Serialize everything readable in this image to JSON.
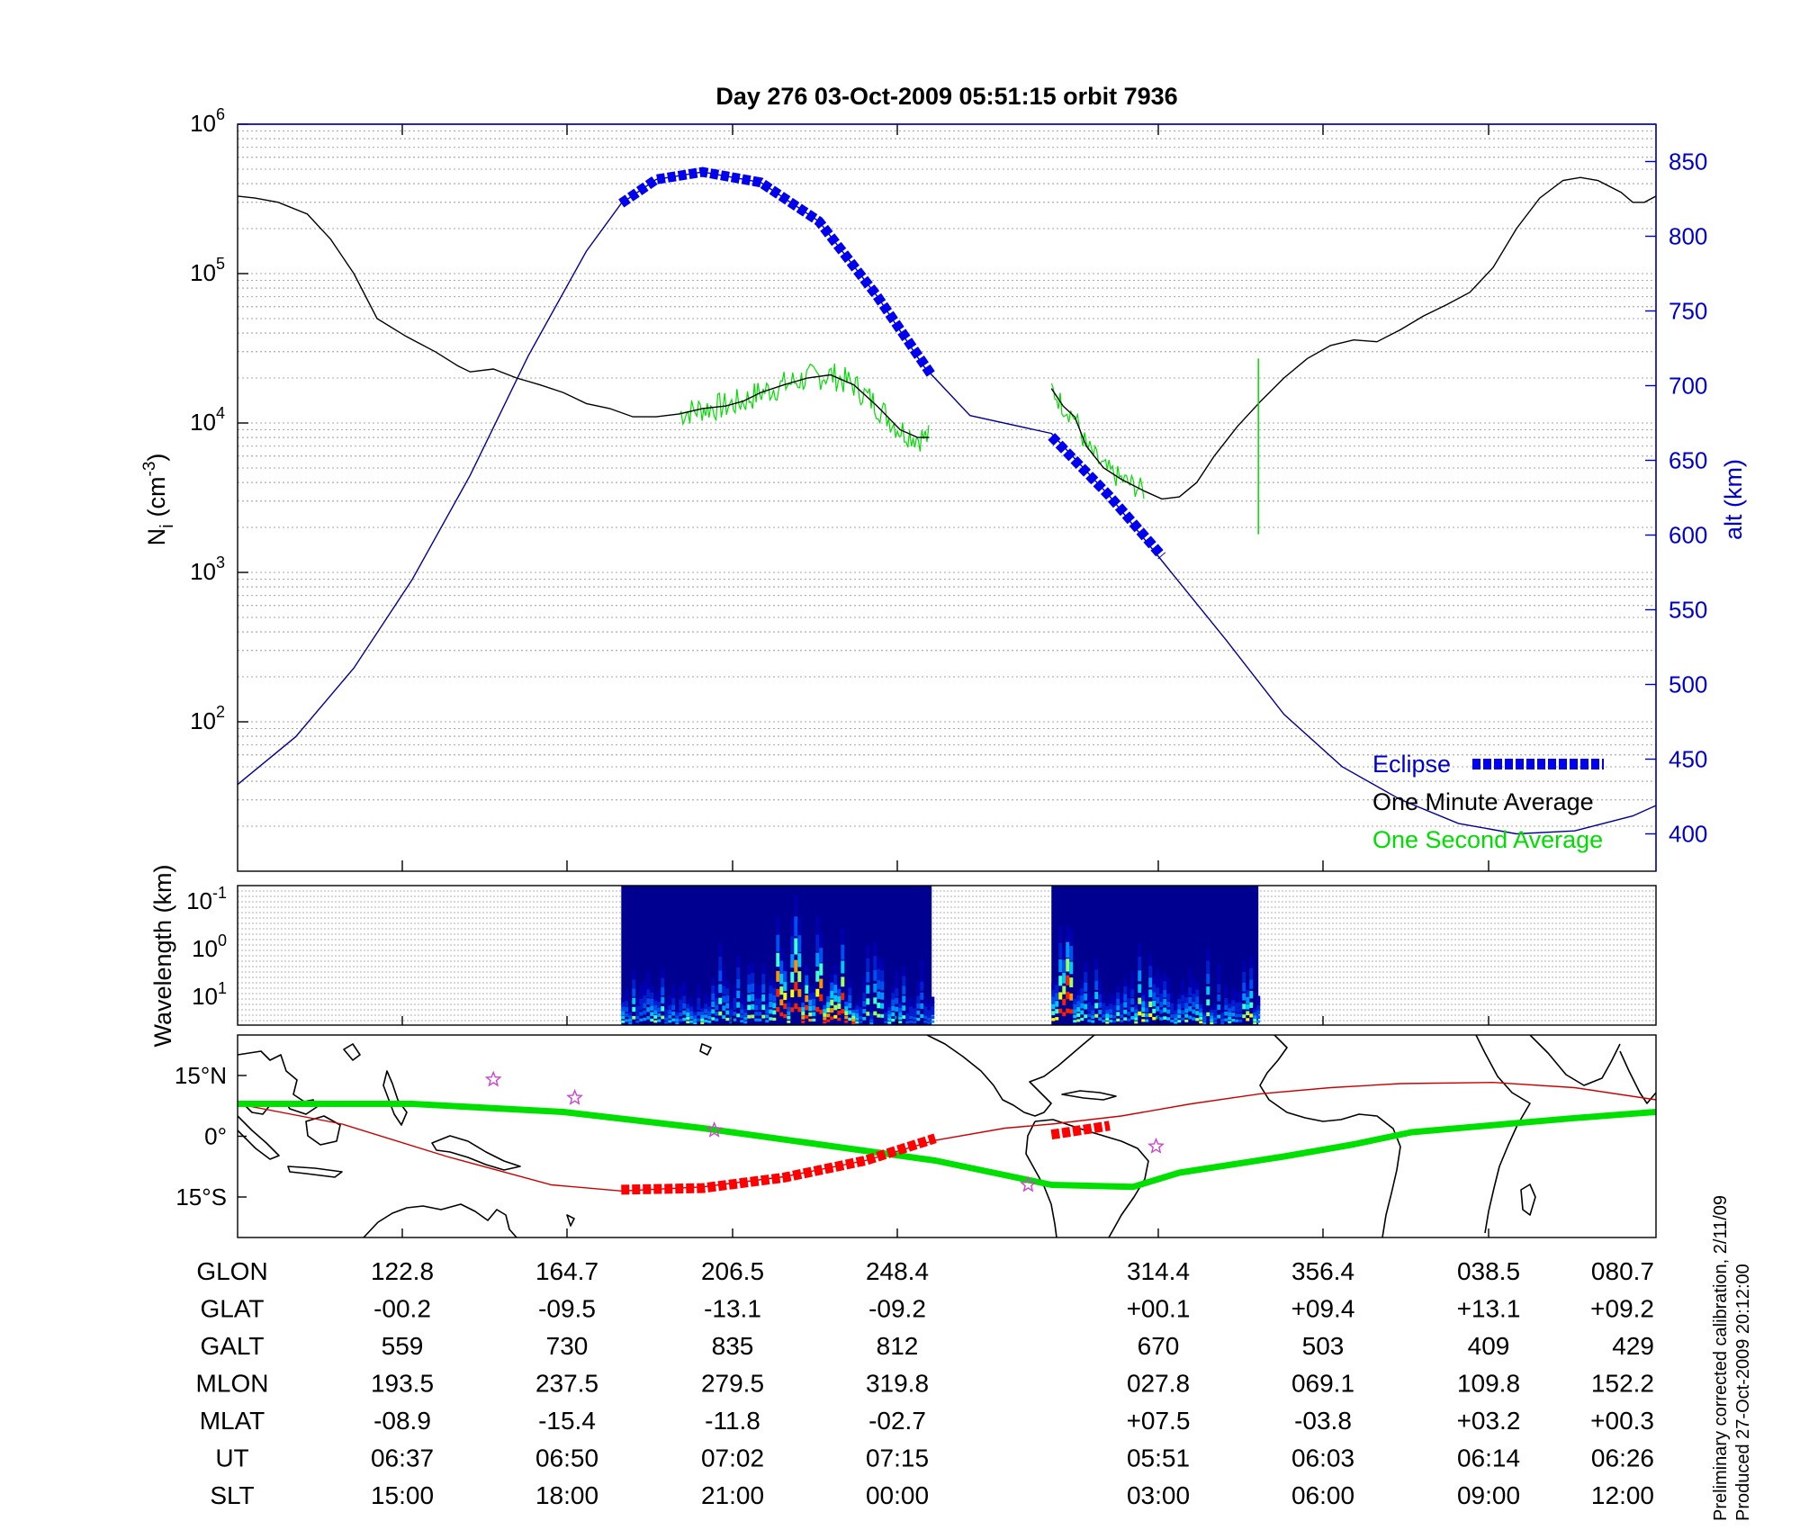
{
  "title": "Day 276  03-Oct-2009 05:51:15   orbit 7936",
  "footer": {
    "line1": "Preliminary corrected calibration, 2/11/09",
    "line2": "Produced 27-Oct-2009 20:12:00"
  },
  "colors": {
    "eclipse": "#0000ee",
    "one_minute": "#000000",
    "one_second": "#00dd00",
    "altitude": "#000099",
    "track_dark": "#ff0000",
    "track_lit": "#cc0000",
    "magnetic_equator": "#00e000",
    "stars": "#cc44cc"
  },
  "chart_data": [
    {
      "type": "line",
      "ylabel": "N",
      "ylabel_sub": "i",
      "ylabel_unit_pre": "(cm",
      "ylabel_unit_sup": "-3",
      "ylabel_unit_post": ")",
      "y_scale": "log",
      "ylim": [
        10,
        1000000
      ],
      "ytick_base": "10",
      "yticks_exp": [
        "2",
        "3",
        "4",
        "5",
        "6"
      ],
      "y2label": "alt (km)",
      "y2lim": [
        375,
        875
      ],
      "y2ticks": [
        "400",
        "450",
        "500",
        "550",
        "600",
        "650",
        "700",
        "750",
        "800",
        "850"
      ],
      "x_slots": 9,
      "legend": [
        {
          "label": "Eclipse",
          "color": "#0000ee"
        },
        {
          "label": "One Minute Average",
          "color": "#000000"
        },
        {
          "label": "One Second Average",
          "color": "#00dd00"
        }
      ],
      "legend_position": "bottom-right",
      "grid": true,
      "density_series": {
        "name": "One Minute Average",
        "segments": [
          [
            [
              0,
              330000
            ],
            [
              0.15,
              320000
            ],
            [
              0.35,
              300000
            ],
            [
              0.6,
              250000
            ],
            [
              0.8,
              170000
            ],
            [
              1.0,
              100000
            ],
            [
              1.2,
              50000
            ],
            [
              1.45,
              38000
            ],
            [
              1.7,
              30000
            ],
            [
              1.9,
              24000
            ],
            [
              2.0,
              22000
            ],
            [
              2.2,
              23000
            ],
            [
              2.4,
              20000
            ],
            [
              2.6,
              18000
            ],
            [
              2.8,
              16000
            ],
            [
              3.0,
              13500
            ],
            [
              3.2,
              12500
            ],
            [
              3.4,
              11000
            ],
            [
              3.6,
              11000
            ],
            [
              3.8,
              11500
            ],
            [
              4.0,
              12500
            ],
            [
              4.2,
              13000
            ],
            [
              4.35,
              14000
            ],
            [
              4.5,
              16000
            ],
            [
              4.7,
              18000
            ],
            [
              4.9,
              20000
            ],
            [
              5.1,
              21000
            ],
            [
              5.3,
              18000
            ],
            [
              5.5,
              13000
            ],
            [
              5.7,
              9000
            ],
            [
              5.85,
              8000
            ],
            [
              5.95,
              8000
            ]
          ],
          [
            [
              7.0,
              17000
            ],
            [
              7.1,
              13000
            ],
            [
              7.2,
              11000
            ],
            [
              7.3,
              7000
            ],
            [
              7.45,
              5000
            ],
            [
              7.6,
              4200
            ],
            [
              7.8,
              3500
            ],
            [
              7.95,
              3100
            ],
            [
              8.1,
              3200
            ],
            [
              8.25,
              4000
            ],
            [
              8.4,
              6000
            ],
            [
              8.6,
              9500
            ],
            [
              8.8,
              14000
            ],
            [
              9.0,
              20000
            ],
            [
              9.2,
              27000
            ],
            [
              9.4,
              33000
            ],
            [
              9.6,
              36000
            ],
            [
              9.8,
              35000
            ],
            [
              10.0,
              42000
            ],
            [
              10.2,
              52000
            ],
            [
              10.4,
              62000
            ],
            [
              10.6,
              75000
            ],
            [
              10.8,
              110000
            ],
            [
              11.0,
              200000
            ],
            [
              11.2,
              320000
            ],
            [
              11.4,
              420000
            ],
            [
              11.55,
              440000
            ],
            [
              11.7,
              420000
            ],
            [
              11.9,
              350000
            ],
            [
              12.0,
              300000
            ],
            [
              12.1,
              300000
            ],
            [
              12.2,
              330000
            ]
          ]
        ]
      },
      "density_second_spans": [
        [
          3.8,
          5.95
        ],
        [
          7.0,
          7.8
        ]
      ],
      "density_spike": {
        "x": 8.78,
        "y_top": 27000,
        "y_bottom": 1800
      },
      "altitude_series": {
        "name": "alt (km)",
        "points": [
          [
            0,
            433
          ],
          [
            0.5,
            465
          ],
          [
            1.0,
            511
          ],
          [
            1.5,
            570
          ],
          [
            2.0,
            640
          ],
          [
            2.5,
            720
          ],
          [
            3.0,
            790
          ],
          [
            3.3,
            822
          ],
          [
            3.6,
            838
          ],
          [
            4.0,
            843
          ],
          [
            4.5,
            836
          ],
          [
            5.0,
            810
          ],
          [
            5.5,
            760
          ],
          [
            5.9,
            713
          ],
          [
            6.3,
            680
          ],
          [
            7.0,
            668
          ],
          [
            7.5,
            626
          ],
          [
            8.0,
            578
          ],
          [
            8.5,
            530
          ],
          [
            9.0,
            480
          ],
          [
            9.5,
            445
          ],
          [
            10.0,
            423
          ],
          [
            10.5,
            407
          ],
          [
            11.0,
            400
          ],
          [
            11.5,
            402
          ],
          [
            12.0,
            412
          ],
          [
            12.2,
            419
          ]
        ]
      },
      "eclipse_segments": [
        [
          [
            3.3,
            822
          ],
          [
            3.6,
            838
          ],
          [
            4.0,
            843
          ],
          [
            4.5,
            836
          ],
          [
            5.0,
            810
          ],
          [
            5.5,
            760
          ],
          [
            5.97,
            707
          ]
        ],
        [
          [
            7.0,
            666
          ],
          [
            7.5,
            626
          ],
          [
            7.95,
            586
          ]
        ]
      ]
    },
    {
      "type": "heatmap",
      "ylabel": "Wavelength (km)",
      "ytick_base": "10",
      "yticks_exp": [
        "-1",
        "0",
        "1"
      ],
      "spectrogram_spans": [
        [
          3.3,
          5.97
        ],
        [
          7.0,
          8.78
        ]
      ]
    },
    {
      "type": "map",
      "yticks": [
        "15°N",
        "0°",
        "15°S"
      ],
      "ylim": [
        -25,
        25
      ],
      "track_segments": [
        {
          "name": "ground track",
          "points": [
            [
              0,
              8
            ],
            [
              0.9,
              3
            ],
            [
              1.8,
              -5
            ],
            [
              2.7,
              -12
            ],
            [
              3.3,
              -13.5
            ],
            [
              4,
              -12.5
            ],
            [
              4.7,
              -10
            ],
            [
              5.4,
              -6
            ],
            [
              6,
              -1
            ],
            [
              6.6,
              2
            ],
            [
              7.0,
              3
            ],
            [
              7.6,
              5
            ],
            [
              8.2,
              8
            ],
            [
              8.8,
              10.5
            ],
            [
              9.4,
              12
            ],
            [
              10.0,
              13
            ],
            [
              10.8,
              13.3
            ],
            [
              11.5,
              12
            ],
            [
              12.2,
              9
            ]
          ]
        },
        {
          "name": "eclipse track",
          "points": [
            [
              3.3,
              -13.2
            ],
            [
              4.0,
              -12.8
            ],
            [
              4.7,
              -10.2
            ],
            [
              5.4,
              -6
            ],
            [
              6.0,
              -0.5
            ]
          ]
        },
        {
          "name": "eclipse track 2",
          "points": [
            [
              7.0,
              0.4
            ],
            [
              7.5,
              2.6
            ]
          ]
        }
      ],
      "magnetic_equator": [
        [
          0,
          8
        ],
        [
          1.5,
          8
        ],
        [
          2.8,
          6
        ],
        [
          4.0,
          2
        ],
        [
          5.0,
          -2
        ],
        [
          6.0,
          -6
        ],
        [
          6.5,
          -9
        ],
        [
          7.0,
          -12
        ],
        [
          7.7,
          -12.5
        ],
        [
          8.1,
          -9
        ],
        [
          9.0,
          -5
        ],
        [
          9.6,
          -2
        ],
        [
          10.1,
          1
        ],
        [
          10.9,
          3
        ],
        [
          11.5,
          4.5
        ],
        [
          12.2,
          6
        ]
      ],
      "stars": [
        [
          2.2,
          14
        ],
        [
          2.9,
          9.5
        ],
        [
          4.1,
          1.5
        ],
        [
          6.8,
          -12
        ],
        [
          7.9,
          -2.5
        ]
      ]
    }
  ],
  "table": {
    "row_labels": [
      "GLON",
      "GLAT",
      "GALT",
      "MLON",
      "MLAT",
      "UT",
      "SLT"
    ],
    "columns": [
      [
        "122.8",
        "-00.2",
        "559",
        "193.5",
        "-08.9",
        "06:37",
        "15:00"
      ],
      [
        "164.7",
        "-09.5",
        "730",
        "237.5",
        "-15.4",
        "06:50",
        "18:00"
      ],
      [
        "206.5",
        "-13.1",
        "835",
        "279.5",
        "-11.8",
        "07:02",
        "21:00"
      ],
      [
        "248.4",
        "-09.2",
        "812",
        "319.8",
        "-02.7",
        "07:15",
        "00:00"
      ],
      [
        "314.4",
        "+00.1",
        "670",
        "027.8",
        "+07.5",
        "05:51",
        "03:00"
      ],
      [
        "356.4",
        "+09.4",
        "503",
        "069.1",
        "-03.8",
        "06:03",
        "06:00"
      ],
      [
        "038.5",
        "+13.1",
        "409",
        "109.8",
        "+03.2",
        "06:14",
        "09:00"
      ],
      [
        "080.7",
        "+09.2",
        "429",
        "152.2",
        "+00.3",
        "06:26",
        "12:00"
      ]
    ]
  }
}
